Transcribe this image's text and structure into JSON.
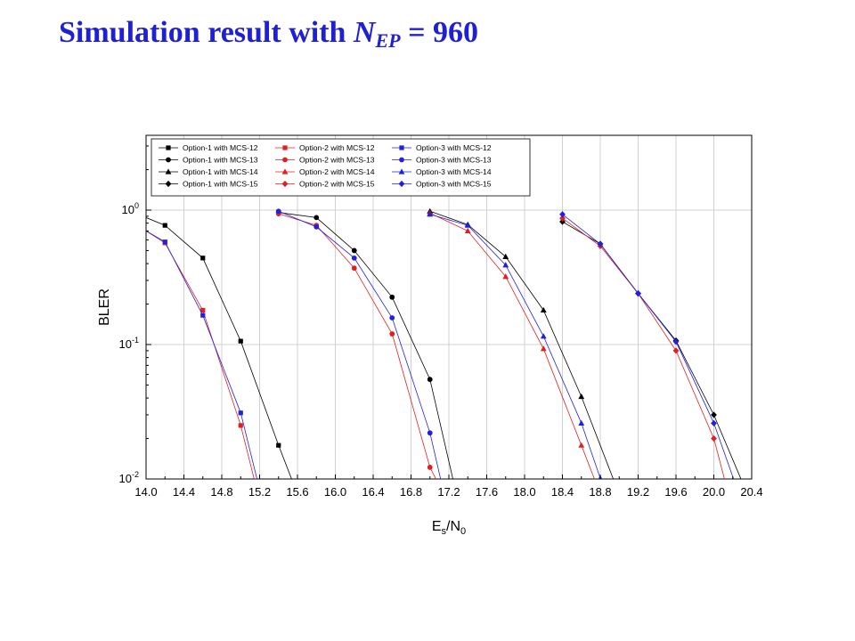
{
  "title": {
    "prefix": "Simulation result with ",
    "symbol": "N",
    "subscript": "EP",
    "suffix": " = 960"
  },
  "colors": {
    "title": "#1f1fd6",
    "option1": "#000000",
    "option2": "#e02020",
    "option3": "#2020e0",
    "grid": "#d0d0d0"
  },
  "chart_data": {
    "type": "line",
    "xlabel": {
      "main": "E",
      "sub1": "s",
      "mid": "/N",
      "sub2": "0"
    },
    "ylabel": "BLER",
    "y_scale": "log",
    "xlim": [
      14.0,
      20.4
    ],
    "ylim": [
      0.01,
      3.6
    ],
    "x_ticks": [
      "14.0",
      "14.4",
      "14.8",
      "15.2",
      "15.6",
      "16.0",
      "16.4",
      "16.8",
      "17.2",
      "17.6",
      "18.0",
      "18.4",
      "18.8",
      "19.2",
      "19.6",
      "20.0",
      "20.4"
    ],
    "y_ticks": [
      {
        "value": 1,
        "base": "10",
        "exp": "0"
      },
      {
        "value": 0.1,
        "base": "10",
        "exp": "-1"
      },
      {
        "value": 0.01,
        "base": "10",
        "exp": "-2"
      }
    ],
    "grid": true,
    "legend_position": "top",
    "series": [
      {
        "name": "Option-1 with MCS-12",
        "option": 1,
        "marker": "square",
        "x": [
          14.0,
          14.2,
          14.6,
          15.0,
          15.4,
          15.55
        ],
        "y": [
          0.88,
          0.77,
          0.44,
          0.106,
          0.0178,
          0.0095
        ]
      },
      {
        "name": "Option-1 with MCS-13",
        "option": 1,
        "marker": "circle",
        "x": [
          15.4,
          15.8,
          16.2,
          16.6,
          17.0,
          17.25
        ],
        "y": [
          0.96,
          0.88,
          0.5,
          0.225,
          0.055,
          0.0095
        ]
      },
      {
        "name": "Option-1 with MCS-14",
        "option": 1,
        "marker": "triangle",
        "x": [
          17.0,
          17.4,
          17.8,
          18.2,
          18.6,
          18.95
        ],
        "y": [
          0.98,
          0.78,
          0.45,
          0.18,
          0.041,
          0.0095
        ]
      },
      {
        "name": "Option-1 with MCS-15",
        "option": 1,
        "marker": "diamond",
        "x": [
          18.4,
          18.8,
          19.2,
          19.6,
          20.0,
          20.3
        ],
        "y": [
          0.82,
          0.56,
          0.24,
          0.107,
          0.03,
          0.0095
        ]
      },
      {
        "name": "Option-2 with MCS-12",
        "option": 2,
        "marker": "square",
        "x": [
          14.0,
          14.2,
          14.6,
          15.0,
          15.15
        ],
        "y": [
          0.7,
          0.57,
          0.18,
          0.025,
          0.0095
        ]
      },
      {
        "name": "Option-2 with MCS-13",
        "option": 2,
        "marker": "circle",
        "x": [
          15.4,
          15.8,
          16.2,
          16.6,
          17.0,
          17.08
        ],
        "y": [
          0.94,
          0.77,
          0.37,
          0.12,
          0.0122,
          0.0095
        ]
      },
      {
        "name": "Option-2 with MCS-14",
        "option": 2,
        "marker": "triangle",
        "x": [
          17.0,
          17.4,
          17.8,
          18.2,
          18.6,
          18.75
        ],
        "y": [
          0.95,
          0.7,
          0.32,
          0.093,
          0.0178,
          0.0095
        ]
      },
      {
        "name": "Option-2 with MCS-15",
        "option": 2,
        "marker": "diamond",
        "x": [
          18.4,
          18.8,
          19.2,
          19.6,
          20.0,
          20.12
        ],
        "y": [
          0.87,
          0.54,
          0.24,
          0.09,
          0.02,
          0.0095
        ]
      },
      {
        "name": "Option-3 with MCS-12",
        "option": 3,
        "marker": "square",
        "x": [
          14.0,
          14.2,
          14.6,
          15.0,
          15.18
        ],
        "y": [
          0.7,
          0.58,
          0.165,
          0.031,
          0.0095
        ]
      },
      {
        "name": "Option-3 with MCS-13",
        "option": 3,
        "marker": "circle",
        "x": [
          15.4,
          15.8,
          16.2,
          16.6,
          17.0,
          17.12
        ],
        "y": [
          0.98,
          0.75,
          0.44,
          0.158,
          0.022,
          0.0095
        ]
      },
      {
        "name": "Option-3 with MCS-14",
        "option": 3,
        "marker": "triangle",
        "x": [
          17.0,
          17.4,
          17.8,
          18.2,
          18.6,
          18.8
        ],
        "y": [
          0.93,
          0.77,
          0.39,
          0.115,
          0.026,
          0.0101
        ]
      },
      {
        "name": "Option-3 with MCS-15",
        "option": 3,
        "marker": "diamond",
        "x": [
          18.4,
          18.8,
          19.2,
          19.6,
          20.0,
          20.22
        ],
        "y": [
          0.93,
          0.56,
          0.24,
          0.105,
          0.026,
          0.0095
        ]
      }
    ]
  }
}
